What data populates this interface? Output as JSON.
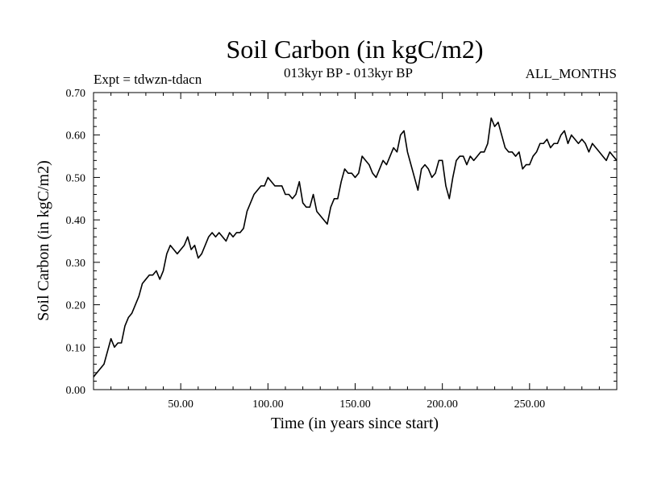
{
  "chart_data": {
    "type": "line",
    "title": "Soil Carbon (in kgC/m2)",
    "subtitle": "013kyr BP - 013kyr BP",
    "left_label": "Expt = tdwzn-tdacn",
    "right_label": "ALL_MONTHS",
    "xlabel": "Time (in years since start)",
    "ylabel": "Soil Carbon (in kgC/m2)",
    "xlim": [
      0,
      300
    ],
    "ylim": [
      0,
      0.7
    ],
    "x_ticks": [
      50,
      100,
      150,
      200,
      250
    ],
    "x_tick_labels": [
      "50.00",
      "100.00",
      "150.00",
      "200.00",
      "250.00"
    ],
    "y_ticks": [
      0,
      0.1,
      0.2,
      0.3,
      0.4,
      0.5,
      0.6,
      0.7
    ],
    "y_tick_labels": [
      "0.00",
      "0.10",
      "0.20",
      "0.30",
      "0.40",
      "0.50",
      "0.60",
      "0.70"
    ],
    "grid": false,
    "series": [
      {
        "name": "Soil Carbon",
        "color": "#000000",
        "points": [
          [
            0,
            0.03
          ],
          [
            2,
            0.04
          ],
          [
            4,
            0.05
          ],
          [
            6,
            0.06
          ],
          [
            8,
            0.09
          ],
          [
            10,
            0.12
          ],
          [
            12,
            0.1
          ],
          [
            14,
            0.11
          ],
          [
            16,
            0.11
          ],
          [
            18,
            0.15
          ],
          [
            20,
            0.17
          ],
          [
            22,
            0.18
          ],
          [
            24,
            0.2
          ],
          [
            26,
            0.22
          ],
          [
            28,
            0.25
          ],
          [
            30,
            0.26
          ],
          [
            32,
            0.27
          ],
          [
            34,
            0.27
          ],
          [
            36,
            0.28
          ],
          [
            38,
            0.26
          ],
          [
            40,
            0.28
          ],
          [
            42,
            0.32
          ],
          [
            44,
            0.34
          ],
          [
            46,
            0.33
          ],
          [
            48,
            0.32
          ],
          [
            50,
            0.33
          ],
          [
            52,
            0.34
          ],
          [
            54,
            0.36
          ],
          [
            56,
            0.33
          ],
          [
            58,
            0.34
          ],
          [
            60,
            0.31
          ],
          [
            62,
            0.32
          ],
          [
            64,
            0.34
          ],
          [
            66,
            0.36
          ],
          [
            68,
            0.37
          ],
          [
            70,
            0.36
          ],
          [
            72,
            0.37
          ],
          [
            74,
            0.36
          ],
          [
            76,
            0.35
          ],
          [
            78,
            0.37
          ],
          [
            80,
            0.36
          ],
          [
            82,
            0.37
          ],
          [
            84,
            0.37
          ],
          [
            86,
            0.38
          ],
          [
            88,
            0.42
          ],
          [
            90,
            0.44
          ],
          [
            92,
            0.46
          ],
          [
            94,
            0.47
          ],
          [
            96,
            0.48
          ],
          [
            98,
            0.48
          ],
          [
            100,
            0.5
          ],
          [
            102,
            0.49
          ],
          [
            104,
            0.48
          ],
          [
            106,
            0.48
          ],
          [
            108,
            0.48
          ],
          [
            110,
            0.46
          ],
          [
            112,
            0.46
          ],
          [
            114,
            0.45
          ],
          [
            116,
            0.46
          ],
          [
            118,
            0.49
          ],
          [
            120,
            0.44
          ],
          [
            122,
            0.43
          ],
          [
            124,
            0.43
          ],
          [
            126,
            0.46
          ],
          [
            128,
            0.42
          ],
          [
            130,
            0.41
          ],
          [
            132,
            0.4
          ],
          [
            134,
            0.39
          ],
          [
            136,
            0.43
          ],
          [
            138,
            0.45
          ],
          [
            140,
            0.45
          ],
          [
            142,
            0.49
          ],
          [
            144,
            0.52
          ],
          [
            146,
            0.51
          ],
          [
            148,
            0.51
          ],
          [
            150,
            0.5
          ],
          [
            152,
            0.51
          ],
          [
            154,
            0.55
          ],
          [
            156,
            0.54
          ],
          [
            158,
            0.53
          ],
          [
            160,
            0.51
          ],
          [
            162,
            0.5
          ],
          [
            164,
            0.52
          ],
          [
            166,
            0.54
          ],
          [
            168,
            0.53
          ],
          [
            170,
            0.55
          ],
          [
            172,
            0.57
          ],
          [
            174,
            0.56
          ],
          [
            176,
            0.6
          ],
          [
            178,
            0.61
          ],
          [
            180,
            0.56
          ],
          [
            182,
            0.53
          ],
          [
            184,
            0.5
          ],
          [
            186,
            0.47
          ],
          [
            188,
            0.52
          ],
          [
            190,
            0.53
          ],
          [
            192,
            0.52
          ],
          [
            194,
            0.5
          ],
          [
            196,
            0.51
          ],
          [
            198,
            0.54
          ],
          [
            200,
            0.54
          ],
          [
            202,
            0.48
          ],
          [
            204,
            0.45
          ],
          [
            206,
            0.5
          ],
          [
            208,
            0.54
          ],
          [
            210,
            0.55
          ],
          [
            212,
            0.55
          ],
          [
            214,
            0.53
          ],
          [
            216,
            0.55
          ],
          [
            218,
            0.54
          ],
          [
            220,
            0.55
          ],
          [
            222,
            0.56
          ],
          [
            224,
            0.56
          ],
          [
            226,
            0.58
          ],
          [
            228,
            0.64
          ],
          [
            230,
            0.62
          ],
          [
            232,
            0.63
          ],
          [
            234,
            0.6
          ],
          [
            236,
            0.57
          ],
          [
            238,
            0.56
          ],
          [
            240,
            0.56
          ],
          [
            242,
            0.55
          ],
          [
            244,
            0.56
          ],
          [
            246,
            0.52
          ],
          [
            248,
            0.53
          ],
          [
            250,
            0.53
          ],
          [
            252,
            0.55
          ],
          [
            254,
            0.56
          ],
          [
            256,
            0.58
          ],
          [
            258,
            0.58
          ],
          [
            260,
            0.59
          ],
          [
            262,
            0.57
          ],
          [
            264,
            0.58
          ],
          [
            266,
            0.58
          ],
          [
            268,
            0.6
          ],
          [
            270,
            0.61
          ],
          [
            272,
            0.58
          ],
          [
            274,
            0.6
          ],
          [
            276,
            0.59
          ],
          [
            278,
            0.58
          ],
          [
            280,
            0.59
          ],
          [
            282,
            0.58
          ],
          [
            284,
            0.56
          ],
          [
            286,
            0.58
          ],
          [
            288,
            0.57
          ],
          [
            290,
            0.56
          ],
          [
            292,
            0.55
          ],
          [
            294,
            0.54
          ],
          [
            296,
            0.56
          ],
          [
            298,
            0.55
          ],
          [
            300,
            0.54
          ]
        ]
      }
    ]
  }
}
